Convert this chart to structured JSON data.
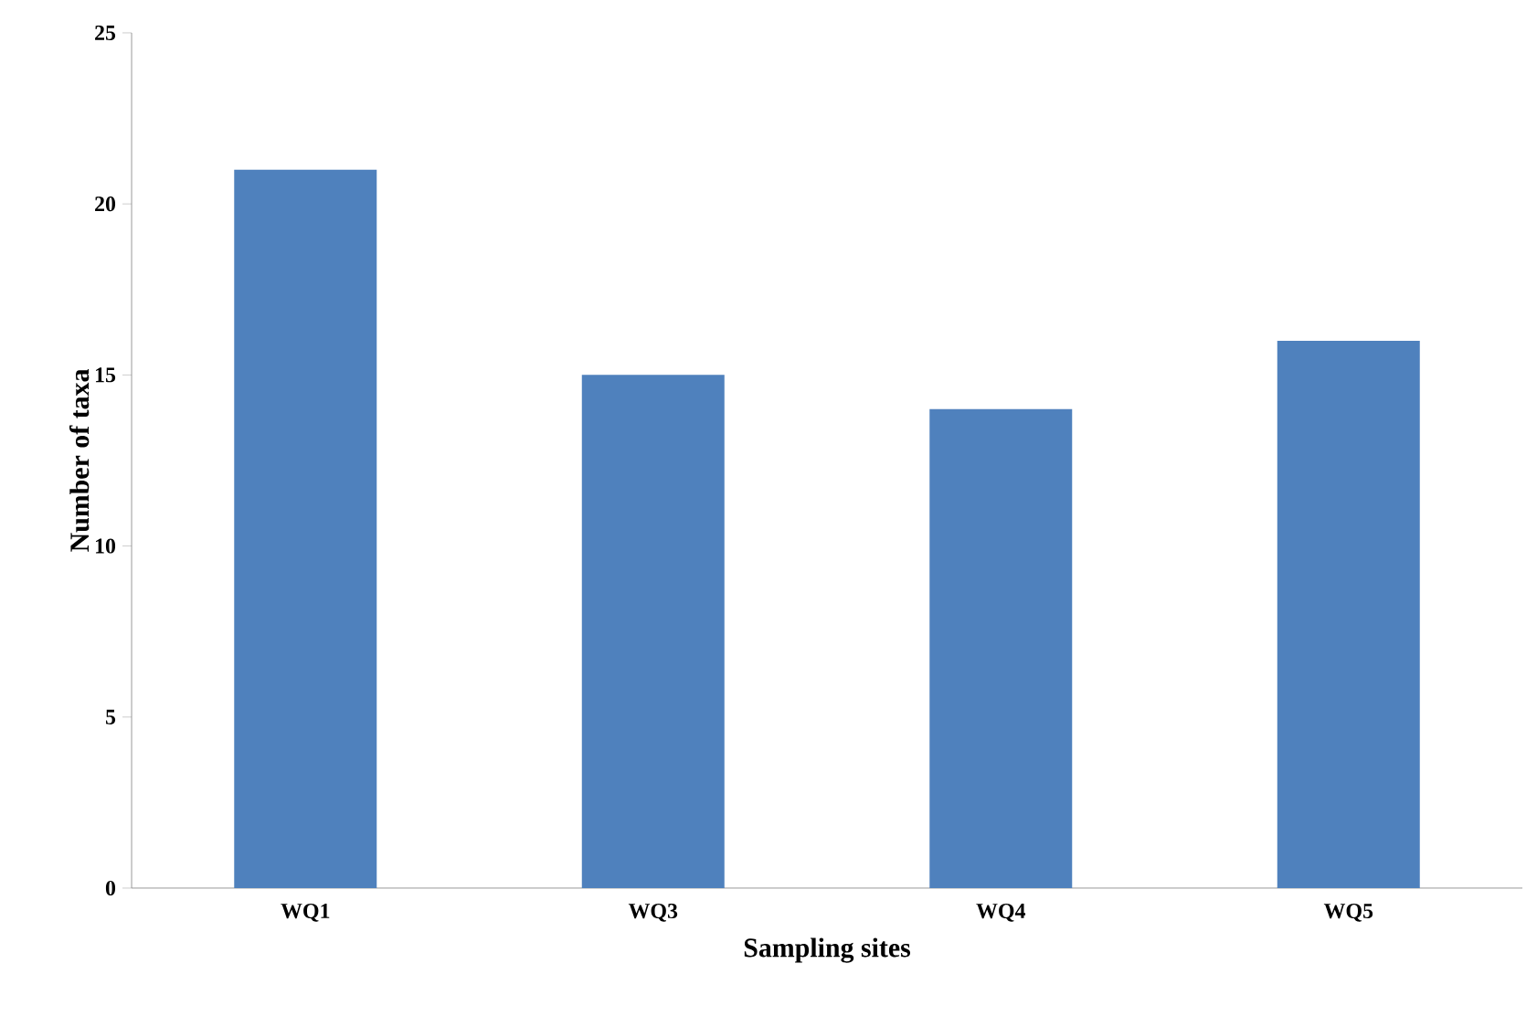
{
  "chart_data": {
    "type": "bar",
    "xlabel": "Sampling sites",
    "ylabel": "Number of taxa",
    "categories": [
      "WQ1",
      "WQ3",
      "WQ4",
      "WQ5"
    ],
    "values": [
      21,
      15,
      14,
      16
    ],
    "color": "#4f81bd",
    "ylim": [
      0,
      25
    ],
    "yticks": [
      0,
      5,
      10,
      15,
      20,
      25
    ]
  }
}
